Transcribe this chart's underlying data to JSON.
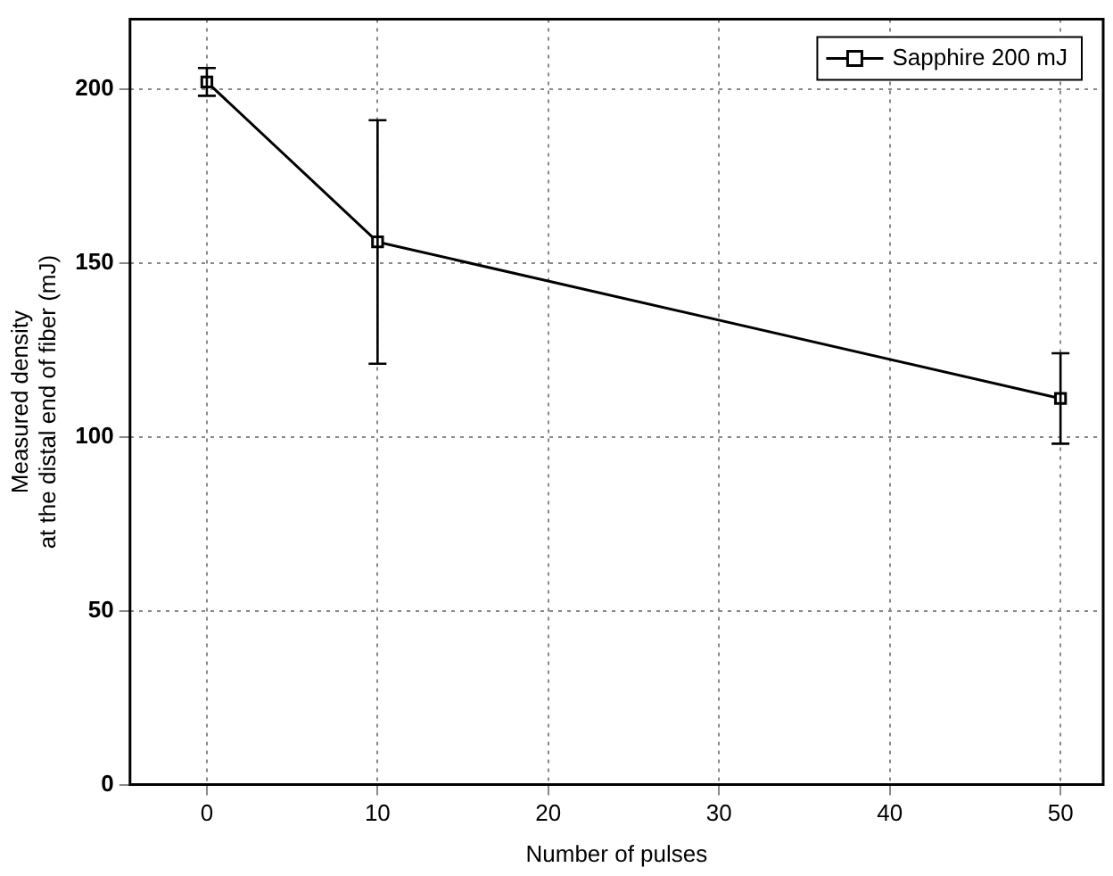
{
  "chart_data": {
    "type": "line",
    "xlabel": "Number of pulses",
    "ylabel": "Measured density\nat the distal end of fiber (mJ)",
    "x": [
      0,
      10,
      50
    ],
    "series": [
      {
        "name": "Sapphire 200 mJ",
        "color": "#000000",
        "values": [
          202,
          156,
          111
        ],
        "errors": [
          4,
          35,
          13
        ]
      }
    ],
    "xlim": [
      -4.5,
      52.5
    ],
    "xticks": [
      0,
      10,
      20,
      30,
      40,
      50
    ],
    "ylim": [
      0,
      220
    ],
    "yticks": [
      0,
      50,
      100,
      150,
      200
    ],
    "grid": true,
    "legend": "top right",
    "marker": "square",
    "line_style": "solid"
  }
}
